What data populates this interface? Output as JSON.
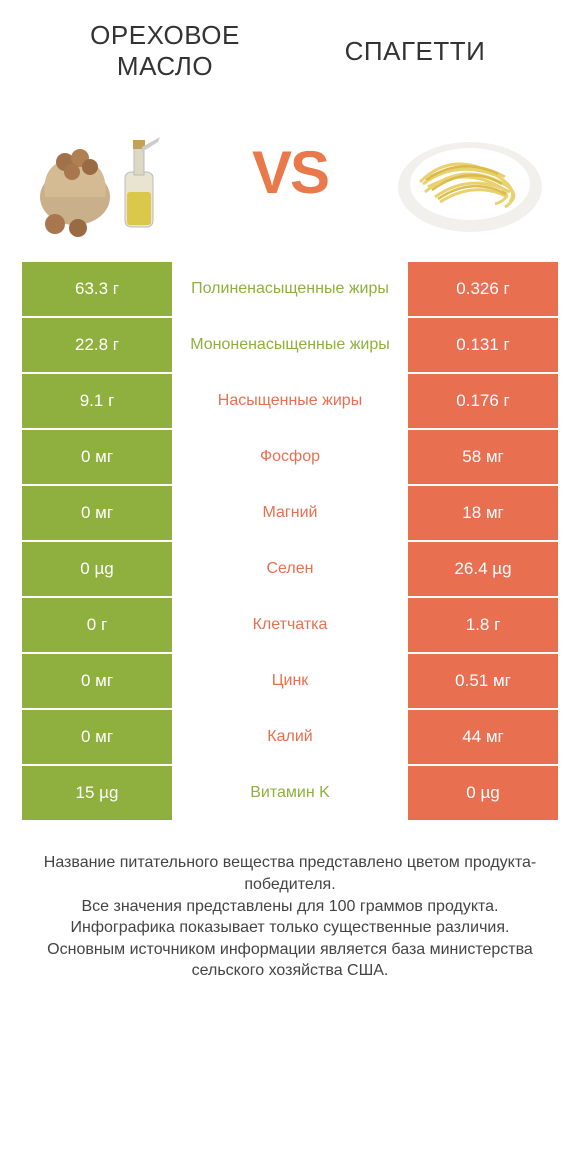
{
  "header": {
    "left_title": "Ореховое масло",
    "right_title": "Спагетти",
    "vs": "VS"
  },
  "colors": {
    "green": "#8fb03e",
    "orange": "#e96f51",
    "vs_color": "#e9794a"
  },
  "rows": [
    {
      "left": "63.3 г",
      "label": "Полиненасыщенные жиры",
      "right": "0.326 г",
      "winner": "left"
    },
    {
      "left": "22.8 г",
      "label": "Мононенасыщенные жиры",
      "right": "0.131 г",
      "winner": "left"
    },
    {
      "left": "9.1 г",
      "label": "Насыщенные жиры",
      "right": "0.176 г",
      "winner": "right"
    },
    {
      "left": "0 мг",
      "label": "Фосфор",
      "right": "58 мг",
      "winner": "right"
    },
    {
      "left": "0 мг",
      "label": "Магний",
      "right": "18 мг",
      "winner": "right"
    },
    {
      "left": "0 µg",
      "label": "Селен",
      "right": "26.4 µg",
      "winner": "right"
    },
    {
      "left": "0 г",
      "label": "Клетчатка",
      "right": "1.8 г",
      "winner": "right"
    },
    {
      "left": "0 мг",
      "label": "Цинк",
      "right": "0.51 мг",
      "winner": "right"
    },
    {
      "left": "0 мг",
      "label": "Калий",
      "right": "44 мг",
      "winner": "right"
    },
    {
      "left": "15 µg",
      "label": "Витамин K",
      "right": "0 µg",
      "winner": "left"
    }
  ],
  "footer": {
    "line1": "Название питательного вещества представлено цветом продукта-победителя.",
    "line2": "Все значения представлены для 100 граммов продукта.",
    "line3": "Инфографика показывает только существенные различия.",
    "line4": "Основным источником информации является база министерства сельского хозяйства США."
  }
}
